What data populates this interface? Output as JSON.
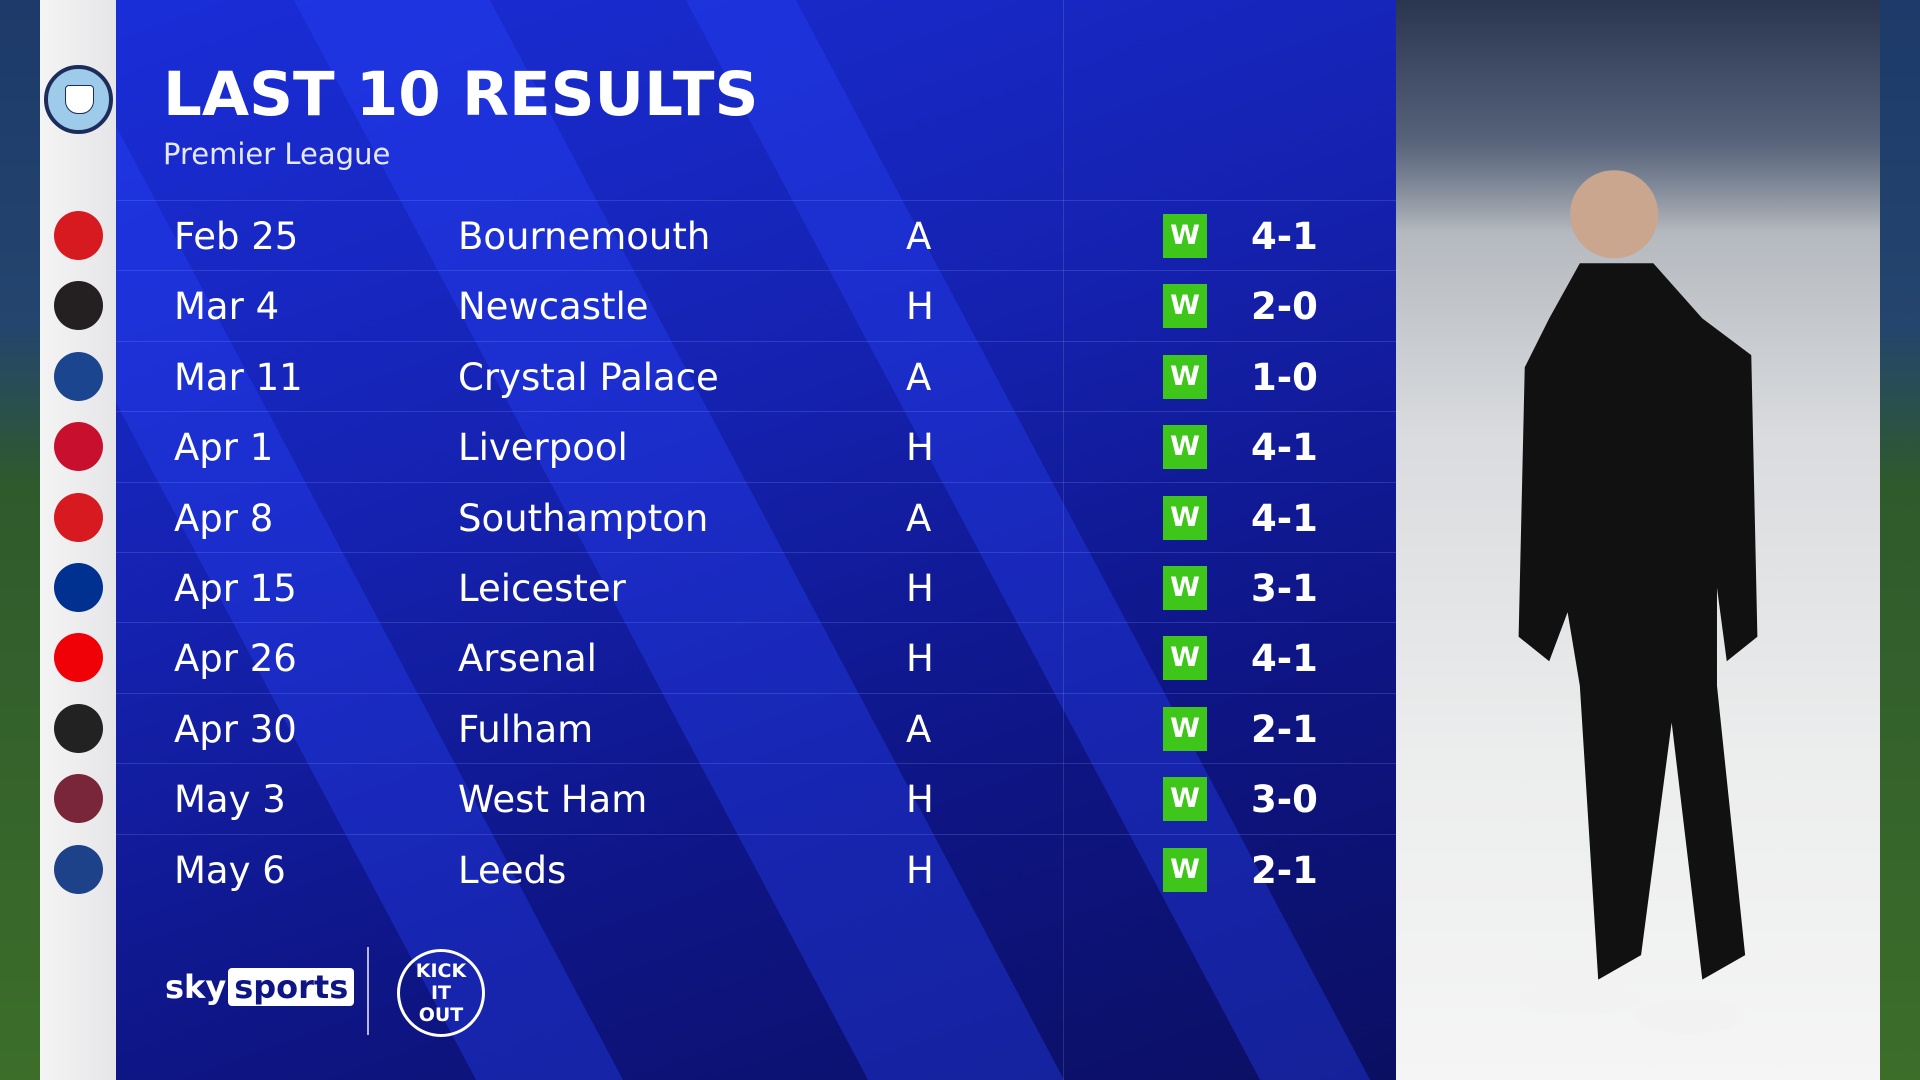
{
  "header": {
    "title": "LAST 10 RESULTS",
    "subtitle": "Premier League",
    "team_badge": "manchester-city-badge"
  },
  "colors": {
    "panel": "#1522b0",
    "win": "#3fc61a"
  },
  "results": [
    {
      "date": "Feb 25",
      "opponent": "Bournemouth",
      "venue": "A",
      "result": "W",
      "score": "4-1",
      "badge_color": "#d71920"
    },
    {
      "date": "Mar 4",
      "opponent": "Newcastle",
      "venue": "H",
      "result": "W",
      "score": "2-0",
      "badge_color": "#241f20"
    },
    {
      "date": "Mar 11",
      "opponent": "Crystal Palace",
      "venue": "A",
      "result": "W",
      "score": "1-0",
      "badge_color": "#1b458f"
    },
    {
      "date": "Apr 1",
      "opponent": "Liverpool",
      "venue": "H",
      "result": "W",
      "score": "4-1",
      "badge_color": "#c8102e"
    },
    {
      "date": "Apr 8",
      "opponent": "Southampton",
      "venue": "A",
      "result": "W",
      "score": "4-1",
      "badge_color": "#d71920"
    },
    {
      "date": "Apr 15",
      "opponent": "Leicester",
      "venue": "H",
      "result": "W",
      "score": "3-1",
      "badge_color": "#003090"
    },
    {
      "date": "Apr 26",
      "opponent": "Arsenal",
      "venue": "H",
      "result": "W",
      "score": "4-1",
      "badge_color": "#ef0107"
    },
    {
      "date": "Apr 30",
      "opponent": "Fulham",
      "venue": "A",
      "result": "W",
      "score": "2-1",
      "badge_color": "#222222"
    },
    {
      "date": "May 3",
      "opponent": "West Ham",
      "venue": "H",
      "result": "W",
      "score": "3-0",
      "badge_color": "#7a263a"
    },
    {
      "date": "May 6",
      "opponent": "Leeds",
      "venue": "H",
      "result": "W",
      "score": "2-1",
      "badge_color": "#1d428a"
    }
  ],
  "footer": {
    "sky_a": "sky",
    "sky_b": "sports",
    "kick_it_out": "KICK IT OUT"
  }
}
